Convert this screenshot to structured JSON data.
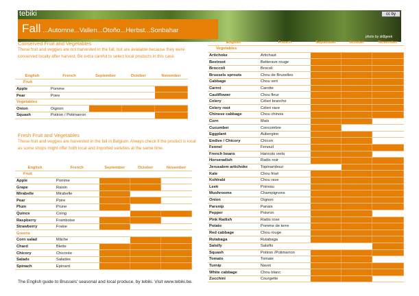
{
  "header": {
    "brand": "tebiki",
    "title": "Fall",
    "translations": " ...Automne...Vallen...Otoño...Herbst...Sonbahar",
    "license_badge": "cc by",
    "photo_credit": "photo by sk8geek"
  },
  "columns": [
    "English",
    "French",
    "September",
    "October",
    "November"
  ],
  "colors": {
    "accent": "#e77e06",
    "heading": "#e98a1e"
  },
  "conserved": {
    "title": "Conserved Fruit and Vegetables",
    "description": "These fruit and veggies are not harvested in the fall, but are available because they were conserved locally after harvest. Be extra careful to select local products in this case.",
    "groups": [
      {
        "name": "Fruit",
        "items": [
          {
            "en": "Apple",
            "fr": "Pomme",
            "months": [
              0,
              0,
              1
            ]
          },
          {
            "en": "Pear",
            "fr": "Poire",
            "months": [
              0,
              0,
              1
            ]
          }
        ]
      },
      {
        "name": "Vegetables",
        "items": [
          {
            "en": "Onion",
            "fr": "Oignon",
            "months": [
              1,
              1,
              1
            ]
          },
          {
            "en": "Squash",
            "fr": "Potiron / Potimarron",
            "months": [
              0,
              0,
              1
            ]
          }
        ]
      }
    ]
  },
  "fresh": {
    "title": "Fresh Fruit and Vegetables",
    "description": "These fruit and veggies are harvested in the fall in Belgium. Always check if the product is local as some shops might offer both local and imported varieties at the same time.",
    "groups": [
      {
        "name": "Fruit",
        "items": [
          {
            "en": "Apple",
            "fr": "Pomme",
            "months": [
              1,
              1,
              0
            ]
          },
          {
            "en": "Grape",
            "fr": "Raisin",
            "months": [
              1,
              1,
              0
            ]
          },
          {
            "en": "Mirabelle",
            "fr": "Mirabelle",
            "months": [
              1,
              0,
              0
            ]
          },
          {
            "en": "Pear",
            "fr": "Poire",
            "months": [
              1,
              1,
              0
            ]
          },
          {
            "en": "Plum",
            "fr": "Prune",
            "months": [
              1,
              0,
              0
            ]
          },
          {
            "en": "Quince",
            "fr": "Coing",
            "months": [
              0,
              1,
              1
            ]
          },
          {
            "en": "Raspberry",
            "fr": "Framboise",
            "months": [
              1,
              1,
              0
            ]
          },
          {
            "en": "Strawberry",
            "fr": "Fraise",
            "months": [
              1,
              0,
              0
            ]
          }
        ]
      },
      {
        "name": "Greens",
        "items": [
          {
            "en": "Corn salad",
            "fr": "Mâche",
            "months": [
              0,
              1,
              1
            ]
          },
          {
            "en": "Chard",
            "fr": "Blette",
            "months": [
              1,
              1,
              1
            ]
          },
          {
            "en": "Chicory",
            "fr": "Chicorée",
            "months": [
              1,
              1,
              1
            ]
          },
          {
            "en": "Salads",
            "fr": "Salades",
            "months": [
              1,
              1,
              1
            ]
          },
          {
            "en": "Spinach",
            "fr": "Epinard",
            "months": [
              1,
              1,
              1
            ]
          }
        ]
      }
    ]
  },
  "vegetables": {
    "groups": [
      {
        "name": "Vegetables",
        "items": [
          {
            "en": "Artichoke",
            "fr": "Artichaut",
            "months": [
              1,
              1,
              1
            ]
          },
          {
            "en": "Beetroot",
            "fr": "Betterave rouge",
            "months": [
              1,
              1,
              1
            ]
          },
          {
            "en": "Broccoli",
            "fr": "Brocoli",
            "months": [
              1,
              1,
              1
            ]
          },
          {
            "en": "Brussels sprouts",
            "fr": "Chou de Bruxelles",
            "months": [
              1,
              1,
              1
            ]
          },
          {
            "en": "Cabbage",
            "fr": "Chou vert",
            "months": [
              1,
              1,
              1
            ]
          },
          {
            "en": "Carrot",
            "fr": "Carotte",
            "months": [
              1,
              1,
              1
            ]
          },
          {
            "en": "Cauliflower",
            "fr": "Chou fleur",
            "months": [
              1,
              1,
              1
            ]
          },
          {
            "en": "Celery",
            "fr": "Céleri branche",
            "months": [
              1,
              1,
              1
            ]
          },
          {
            "en": "Celery root",
            "fr": "Céleri rave",
            "months": [
              1,
              1,
              1
            ]
          },
          {
            "en": "Chinese cabbage",
            "fr": "Chou chinois",
            "months": [
              1,
              1,
              1
            ]
          },
          {
            "en": "Corn",
            "fr": "Maïs",
            "months": [
              1,
              1,
              0
            ]
          },
          {
            "en": "Cucumber",
            "fr": "Concombre",
            "months": [
              1,
              0,
              0
            ]
          },
          {
            "en": "Eggplant",
            "fr": "Aubergine",
            "months": [
              1,
              1,
              0
            ]
          },
          {
            "en": "Endive / Chicory",
            "fr": "Chicon",
            "months": [
              1,
              1,
              0
            ]
          },
          {
            "en": "Fennel",
            "fr": "Fenouil",
            "months": [
              1,
              1,
              1
            ]
          },
          {
            "en": "French beans",
            "fr": "Haricots verts",
            "months": [
              1,
              1,
              0
            ]
          },
          {
            "en": "Horseradish",
            "fr": "Radis noir",
            "months": [
              1,
              1,
              1
            ]
          },
          {
            "en": "Jerusalem artichoke",
            "fr": "Topinambour",
            "months": [
              0,
              1,
              1
            ]
          },
          {
            "en": "Kale",
            "fr": "Chou frisé",
            "months": [
              1,
              1,
              1
            ]
          },
          {
            "en": "Kohlrabi",
            "fr": "Chou rave",
            "months": [
              1,
              1,
              1
            ]
          },
          {
            "en": "Leek",
            "fr": "Poireau",
            "months": [
              1,
              1,
              1
            ]
          },
          {
            "en": "Mushrooms",
            "fr": "Champignons",
            "months": [
              1,
              1,
              1
            ]
          },
          {
            "en": "Onion",
            "fr": "Oignon",
            "months": [
              1,
              1,
              1
            ]
          },
          {
            "en": "Parsnip",
            "fr": "Panais",
            "months": [
              1,
              1,
              1
            ]
          },
          {
            "en": "Pepper",
            "fr": "Poivron",
            "months": [
              1,
              1,
              0
            ]
          },
          {
            "en": "Pink Radish",
            "fr": "Radis rose",
            "months": [
              1,
              1,
              1
            ]
          },
          {
            "en": "Potato",
            "fr": "Pomme de terre",
            "months": [
              1,
              1,
              1
            ]
          },
          {
            "en": "Red cabbage",
            "fr": "Chou rouge",
            "months": [
              1,
              1,
              1
            ]
          },
          {
            "en": "Rutabaga",
            "fr": "Rutabaga",
            "months": [
              1,
              1,
              1
            ]
          },
          {
            "en": "Salsify",
            "fr": "Salsifis",
            "months": [
              0,
              0,
              1
            ]
          },
          {
            "en": "Squash",
            "fr": "Potiron /Potimarron",
            "months": [
              1,
              1,
              1
            ]
          },
          {
            "en": "Tomato",
            "fr": "Tomate",
            "months": [
              1,
              1,
              0
            ]
          },
          {
            "en": "Turnip",
            "fr": "Navet",
            "months": [
              1,
              1,
              1
            ]
          },
          {
            "en": "White cabbage",
            "fr": "Chou blanc",
            "months": [
              1,
              1,
              1
            ]
          },
          {
            "en": "Zucchini",
            "fr": "Courgette",
            "months": [
              1,
              1,
              0
            ]
          }
        ]
      }
    ]
  },
  "footer": "The English guide to Brussels' seasonal and local produce, by tebiki. Visit www.tebiki.be."
}
